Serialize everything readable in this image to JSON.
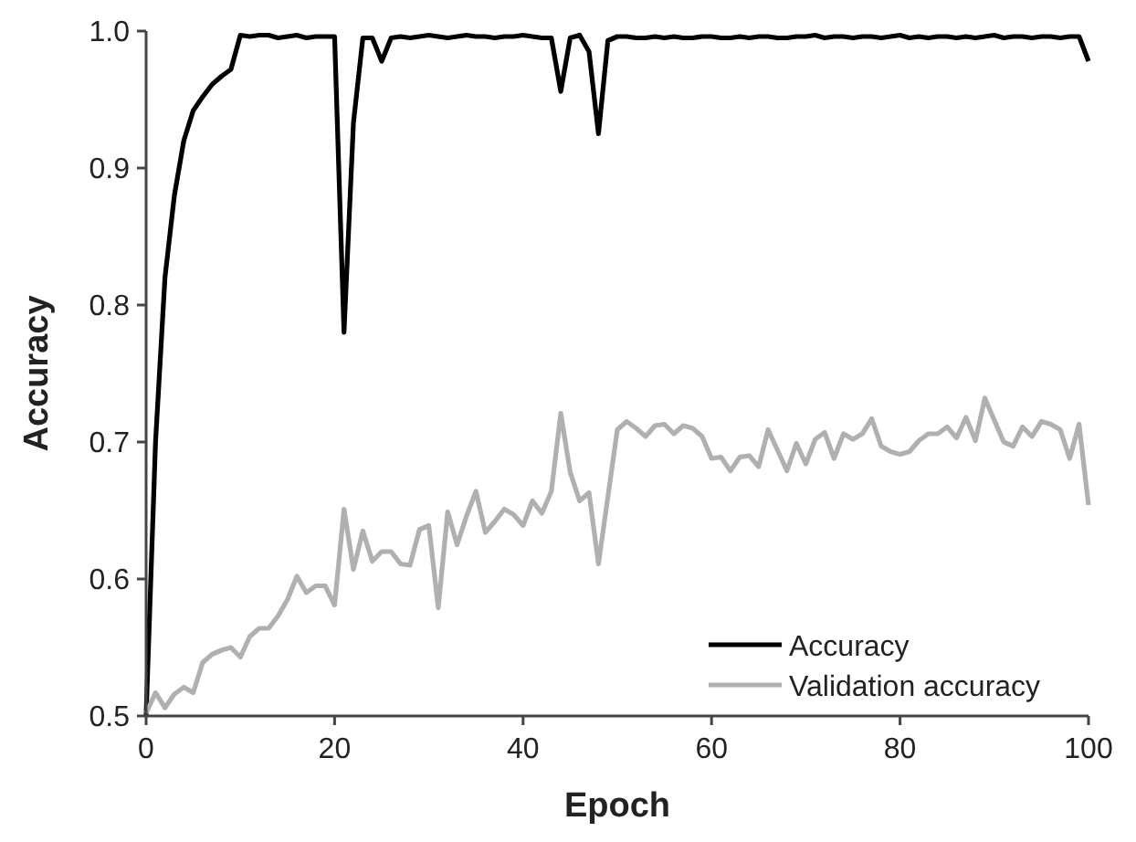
{
  "chart_data": {
    "type": "line",
    "xlabel": "Epoch",
    "ylabel": "Accuracy",
    "x": [
      0,
      1,
      2,
      3,
      4,
      5,
      6,
      7,
      8,
      9,
      10,
      11,
      12,
      13,
      14,
      15,
      16,
      17,
      18,
      19,
      20,
      21,
      22,
      23,
      24,
      25,
      26,
      27,
      28,
      29,
      30,
      31,
      32,
      33,
      34,
      35,
      36,
      37,
      38,
      39,
      40,
      41,
      42,
      43,
      44,
      45,
      46,
      47,
      48,
      49,
      50,
      51,
      52,
      53,
      54,
      55,
      56,
      57,
      58,
      59,
      60,
      61,
      62,
      63,
      64,
      65,
      66,
      67,
      68,
      69,
      70,
      71,
      72,
      73,
      74,
      75,
      76,
      77,
      78,
      79,
      80,
      81,
      82,
      83,
      84,
      85,
      86,
      87,
      88,
      89,
      90,
      91,
      92,
      93,
      94,
      95,
      96,
      97,
      98,
      99,
      100
    ],
    "series": [
      {
        "name": "Accuracy",
        "color": "#000000",
        "values": [
          0.5,
          0.7,
          0.82,
          0.88,
          0.92,
          0.942,
          0.952,
          0.961,
          0.967,
          0.972,
          0.997,
          0.996,
          0.997,
          0.997,
          0.995,
          0.996,
          0.997,
          0.995,
          0.996,
          0.996,
          0.996,
          0.78,
          0.933,
          0.995,
          0.995,
          0.978,
          0.995,
          0.996,
          0.995,
          0.996,
          0.997,
          0.996,
          0.995,
          0.996,
          0.997,
          0.996,
          0.996,
          0.995,
          0.996,
          0.996,
          0.997,
          0.996,
          0.995,
          0.995,
          0.956,
          0.995,
          0.997,
          0.985,
          0.925,
          0.993,
          0.996,
          0.996,
          0.995,
          0.995,
          0.996,
          0.995,
          0.996,
          0.995,
          0.995,
          0.996,
          0.996,
          0.995,
          0.995,
          0.996,
          0.995,
          0.996,
          0.996,
          0.995,
          0.995,
          0.996,
          0.996,
          0.997,
          0.995,
          0.996,
          0.996,
          0.995,
          0.996,
          0.996,
          0.995,
          0.996,
          0.997,
          0.995,
          0.996,
          0.995,
          0.996,
          0.996,
          0.995,
          0.996,
          0.995,
          0.996,
          0.997,
          0.995,
          0.996,
          0.996,
          0.995,
          0.996,
          0.996,
          0.995,
          0.996,
          0.996,
          0.978
        ]
      },
      {
        "name": "Validation accuracy",
        "color": "#b0b0b0",
        "values": [
          0.502,
          0.517,
          0.506,
          0.516,
          0.521,
          0.517,
          0.539,
          0.545,
          0.548,
          0.55,
          0.543,
          0.558,
          0.564,
          0.564,
          0.573,
          0.585,
          0.602,
          0.59,
          0.595,
          0.595,
          0.581,
          0.651,
          0.607,
          0.635,
          0.613,
          0.62,
          0.62,
          0.611,
          0.61,
          0.636,
          0.639,
          0.579,
          0.649,
          0.625,
          0.646,
          0.664,
          0.634,
          0.642,
          0.651,
          0.647,
          0.639,
          0.657,
          0.648,
          0.664,
          0.721,
          0.678,
          0.657,
          0.663,
          0.611,
          0.66,
          0.709,
          0.715,
          0.71,
          0.704,
          0.712,
          0.713,
          0.706,
          0.712,
          0.71,
          0.704,
          0.688,
          0.689,
          0.679,
          0.689,
          0.69,
          0.682,
          0.709,
          0.694,
          0.679,
          0.699,
          0.684,
          0.702,
          0.707,
          0.688,
          0.706,
          0.702,
          0.706,
          0.717,
          0.697,
          0.693,
          0.691,
          0.693,
          0.701,
          0.706,
          0.706,
          0.711,
          0.703,
          0.718,
          0.701,
          0.732,
          0.716,
          0.7,
          0.697,
          0.711,
          0.704,
          0.715,
          0.713,
          0.709,
          0.688,
          0.713,
          0.654
        ]
      }
    ],
    "xlim": [
      0,
      100
    ],
    "xticks": [
      0,
      20,
      40,
      60,
      80,
      100
    ],
    "ylim": [
      0.5,
      1.0
    ],
    "yticks": [
      {
        "value": 0.5,
        "label": "0.5"
      },
      {
        "value": 0.6,
        "label": "0.6"
      },
      {
        "value": 0.7,
        "label": "0.7"
      },
      {
        "value": 0.8,
        "label": "0.8"
      },
      {
        "value": 0.9,
        "label": "0.9"
      },
      {
        "value": 1.0,
        "label": "1.0"
      }
    ],
    "grid": false,
    "legend": "bottom right",
    "marker": "none",
    "line_style": "solid"
  }
}
